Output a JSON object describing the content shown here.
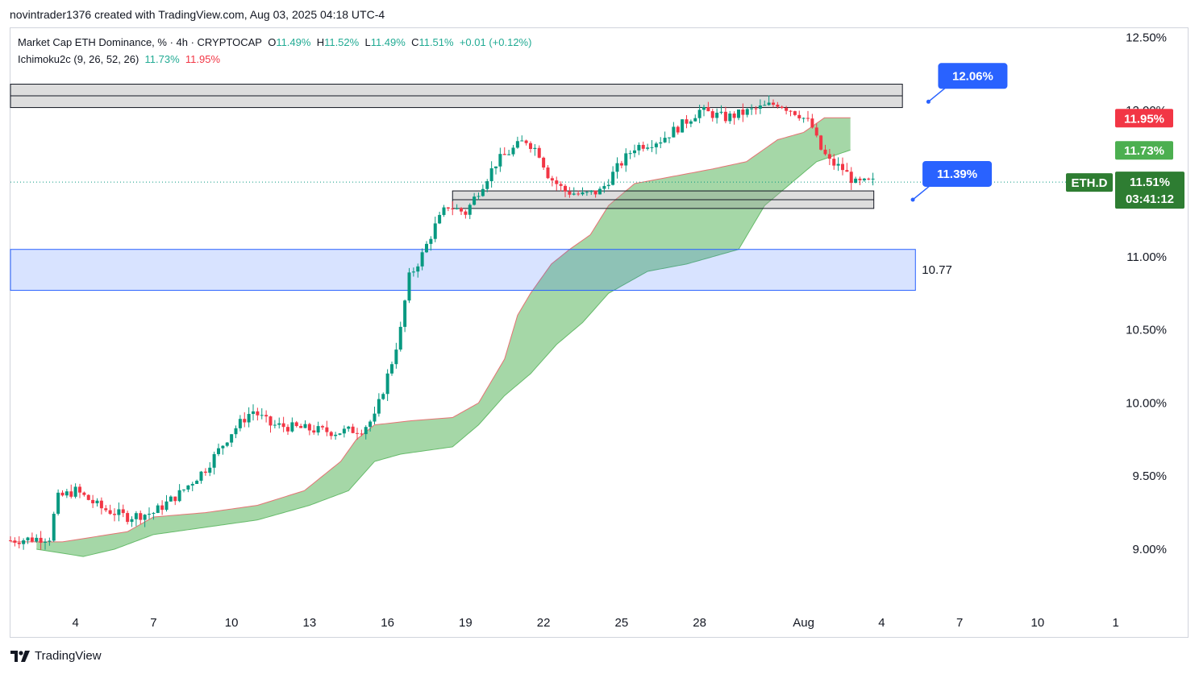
{
  "header": {
    "text": "novintrader1376 created with TradingView.com, Aug 03, 2025 04:18 UTC-4"
  },
  "legend": {
    "symbol": "Market Cap ETH Dominance, % · 4h · CRYPTOCAP",
    "o_label": "O",
    "o_val": "11.49%",
    "h_label": "H",
    "h_val": "11.52%",
    "l_label": "L",
    "l_val": "11.49%",
    "c_label": "C",
    "c_val": "11.51%",
    "change": "+0.01 (+0.12%)",
    "indicator": "Ichimoku2c (9, 26, 52, 26)",
    "ind_val1": "11.73%",
    "ind_val2": "11.95%"
  },
  "footer": {
    "brand": "TradingView"
  },
  "colors": {
    "up": "#089981",
    "down": "#f23645",
    "cloud": "#4caf50",
    "zone_blue": "#2962ff",
    "callout_blue": "#2962ff",
    "tag_red": "#f23645",
    "tag_green": "#4caf50",
    "tag_dark_green": "#2e7d32"
  },
  "chart_data": {
    "type": "candlestick",
    "symbol": "ETH.D",
    "timeframe": "4h",
    "y_axis": {
      "min": 8.6,
      "max": 12.6,
      "unit": "%",
      "ticks": [
        "12.50%",
        "12.00%",
        "11.00%",
        "10.50%",
        "10.00%",
        "9.50%",
        "9.00%"
      ],
      "tick_values": [
        12.5,
        12.0,
        11.0,
        10.5,
        10.0,
        9.5,
        9.0
      ]
    },
    "x_axis": {
      "ticks": [
        "4",
        "7",
        "10",
        "13",
        "16",
        "19",
        "22",
        "25",
        "28",
        "Aug",
        "4",
        "7",
        "10",
        "1"
      ],
      "tick_days": [
        4,
        7,
        10,
        13,
        16,
        19,
        22,
        25,
        28,
        32,
        35,
        38,
        41,
        44
      ],
      "day_range": [
        1.5,
        44.5
      ]
    },
    "close_path": [
      [
        1.5,
        9.06
      ],
      [
        3,
        9.08
      ],
      [
        3.3,
        9.35
      ],
      [
        4,
        9.4
      ],
      [
        5,
        9.28
      ],
      [
        6,
        9.22
      ],
      [
        7,
        9.25
      ],
      [
        8,
        9.38
      ],
      [
        9,
        9.55
      ],
      [
        10,
        9.8
      ],
      [
        10.8,
        9.95
      ],
      [
        11.5,
        9.85
      ],
      [
        13,
        9.82
      ],
      [
        14,
        9.8
      ],
      [
        15,
        9.82
      ],
      [
        15.5,
        9.9
      ],
      [
        16.2,
        10.3
      ],
      [
        16.5,
        10.5
      ],
      [
        16.8,
        10.85
      ],
      [
        17.3,
        11.0
      ],
      [
        17.8,
        11.2
      ],
      [
        18.3,
        11.35
      ],
      [
        19,
        11.3
      ],
      [
        19.5,
        11.45
      ],
      [
        20.2,
        11.65
      ],
      [
        21.3,
        11.8
      ],
      [
        21.8,
        11.72
      ],
      [
        22.2,
        11.55
      ],
      [
        22.8,
        11.45
      ],
      [
        23.5,
        11.42
      ],
      [
        24.2,
        11.45
      ],
      [
        24.8,
        11.6
      ],
      [
        25.5,
        11.75
      ],
      [
        26.5,
        11.8
      ],
      [
        27.3,
        11.9
      ],
      [
        28,
        12.0
      ],
      [
        29,
        11.95
      ],
      [
        30,
        12.0
      ],
      [
        31,
        12.05
      ],
      [
        31.8,
        11.98
      ],
      [
        32.3,
        11.9
      ],
      [
        32.6,
        11.75
      ],
      [
        33,
        11.65
      ],
      [
        33.5,
        11.6
      ],
      [
        34,
        11.5
      ],
      [
        34.7,
        11.51
      ]
    ],
    "last_price": 11.51,
    "ichimoku": {
      "span_a_path": [
        [
          1.5,
          9.05
        ],
        [
          3.5,
          9.05
        ],
        [
          6,
          9.12
        ],
        [
          7,
          9.22
        ],
        [
          9,
          9.25
        ],
        [
          11,
          9.3
        ],
        [
          12.8,
          9.4
        ],
        [
          13.5,
          9.5
        ],
        [
          14.2,
          9.6
        ],
        [
          14.8,
          9.75
        ],
        [
          15.5,
          9.85
        ],
        [
          17,
          9.88
        ],
        [
          18.5,
          9.9
        ],
        [
          19.5,
          10.0
        ],
        [
          20.5,
          10.3
        ],
        [
          21,
          10.6
        ],
        [
          21.5,
          10.75
        ],
        [
          22.3,
          10.95
        ],
        [
          23,
          11.05
        ],
        [
          23.8,
          11.15
        ],
        [
          24.5,
          11.35
        ],
        [
          25.5,
          11.5
        ],
        [
          27,
          11.55
        ],
        [
          28.5,
          11.6
        ],
        [
          29.8,
          11.65
        ],
        [
          31,
          11.8
        ],
        [
          32,
          11.85
        ],
        [
          32.8,
          11.95
        ],
        [
          33.8,
          11.95
        ]
      ],
      "span_b_path": [
        [
          2.5,
          9.0
        ],
        [
          4.3,
          8.95
        ],
        [
          5.5,
          9.0
        ],
        [
          7,
          9.1
        ],
        [
          9,
          9.15
        ],
        [
          11,
          9.2
        ],
        [
          13,
          9.3
        ],
        [
          14.5,
          9.4
        ],
        [
          15.5,
          9.6
        ],
        [
          16.5,
          9.65
        ],
        [
          18.5,
          9.7
        ],
        [
          19.5,
          9.85
        ],
        [
          20.5,
          10.05
        ],
        [
          21.5,
          10.2
        ],
        [
          22.5,
          10.4
        ],
        [
          23.5,
          10.55
        ],
        [
          24.5,
          10.75
        ],
        [
          26,
          10.9
        ],
        [
          27.5,
          10.95
        ],
        [
          28.5,
          11.0
        ],
        [
          29.5,
          11.05
        ],
        [
          30.5,
          11.35
        ],
        [
          31.5,
          11.5
        ],
        [
          32.5,
          11.65
        ],
        [
          33.8,
          11.73
        ]
      ],
      "span_a_last": 11.95,
      "span_b_last": 11.73
    },
    "zones": [
      {
        "kind": "resistance",
        "y_top": 12.18,
        "y_bottom": 12.02,
        "x_start": 1.5,
        "x_end": 35.8
      },
      {
        "kind": "support",
        "y_top": 11.45,
        "y_bottom": 11.33,
        "x_start": 18.5,
        "x_end": 34.7
      },
      {
        "kind": "demand",
        "y_top": 11.05,
        "y_bottom": 10.77,
        "x_start": 1.5,
        "x_end": 36.3,
        "label": "10.77"
      }
    ],
    "callouts": [
      {
        "label": "12.06%",
        "day": 36.8,
        "value": 12.06
      },
      {
        "label": "11.39%",
        "day": 36.2,
        "value": 11.39
      }
    ],
    "price_tags": [
      {
        "label": "11.95%",
        "value": 11.95,
        "kind": "red"
      },
      {
        "label": "11.73%",
        "value": 11.73,
        "kind": "green"
      }
    ],
    "symbol_tag": {
      "label": "ETH.D",
      "price": "11.51%",
      "countdown": "03:41:12"
    }
  }
}
